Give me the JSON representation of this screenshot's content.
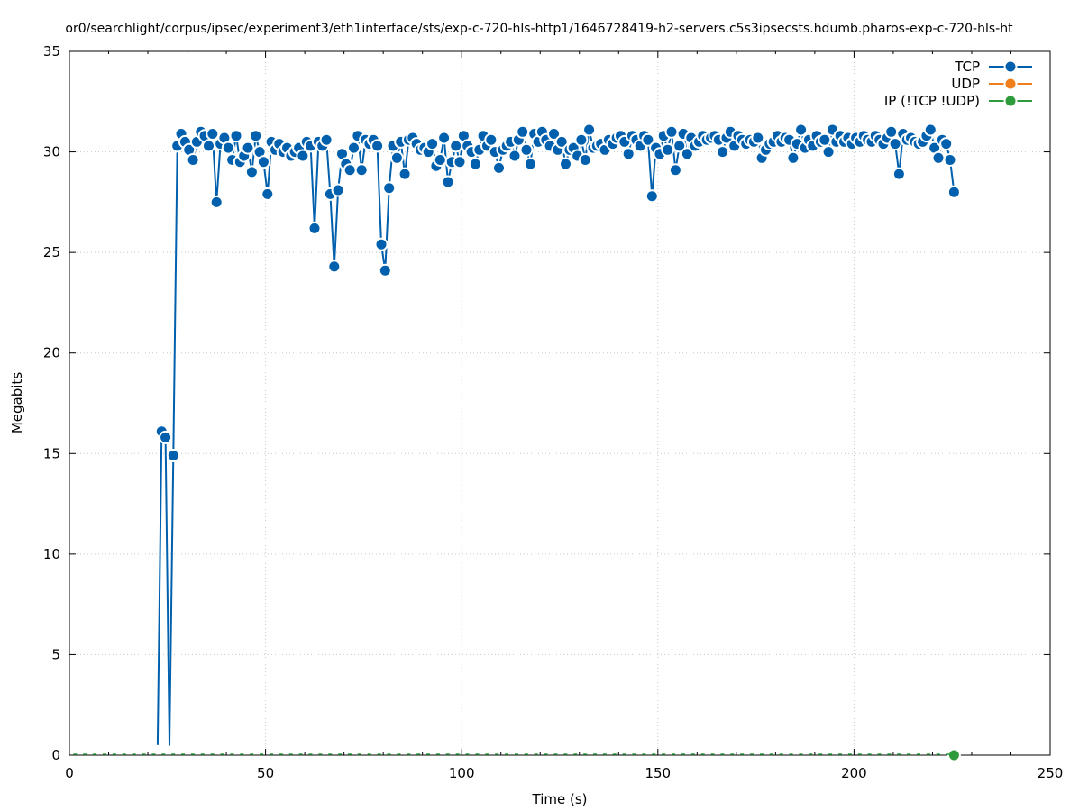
{
  "chart_data": {
    "type": "line",
    "title": "or0/searchlight/corpus/ipsec/experiment3/eth1interface/sts/exp-c-720-hls-http1/1646728419-h2-servers.c5s3ipsecsts.hdumb.pharos-exp-c-720-hls-ht",
    "xlabel": "Time (s)",
    "ylabel": "Megabits",
    "xlim": [
      0,
      250
    ],
    "ylim": [
      0,
      35
    ],
    "x_ticks": [
      0,
      50,
      100,
      150,
      200,
      250
    ],
    "y_ticks": [
      0,
      5,
      10,
      15,
      20,
      25,
      30,
      35
    ],
    "grid": true,
    "legend_position": "top-right",
    "series": [
      {
        "name": "TCP",
        "color": "#0060ad",
        "points": [
          [
            22.5,
            0.5
          ],
          [
            23.5,
            16.1
          ],
          [
            24.5,
            15.8
          ],
          [
            25.5,
            0.5
          ],
          [
            26.5,
            14.9
          ],
          [
            27.5,
            30.3
          ],
          [
            28.5,
            30.9
          ],
          [
            29.5,
            30.5
          ],
          [
            30.5,
            30.1
          ],
          [
            31.5,
            29.6
          ],
          [
            32.5,
            30.5
          ],
          [
            33.5,
            31.0
          ],
          [
            34.5,
            30.8
          ],
          [
            35.5,
            30.3
          ],
          [
            36.5,
            30.9
          ],
          [
            37.5,
            27.5
          ],
          [
            38.5,
            30.4
          ],
          [
            39.5,
            30.7
          ],
          [
            40.5,
            30.2
          ],
          [
            41.5,
            29.6
          ],
          [
            42.5,
            30.8
          ],
          [
            43.5,
            29.5
          ],
          [
            44.5,
            29.8
          ],
          [
            45.5,
            30.2
          ],
          [
            46.5,
            29.0
          ],
          [
            47.5,
            30.8
          ],
          [
            48.5,
            30.0
          ],
          [
            49.5,
            29.5
          ],
          [
            50.5,
            27.9
          ],
          [
            51.5,
            30.5
          ],
          [
            52.5,
            30.1
          ],
          [
            53.5,
            30.4
          ],
          [
            54.5,
            30.0
          ],
          [
            55.5,
            30.2
          ],
          [
            56.5,
            29.8
          ],
          [
            57.5,
            30.0
          ],
          [
            58.5,
            30.2
          ],
          [
            59.5,
            29.8
          ],
          [
            60.5,
            30.5
          ],
          [
            61.5,
            30.3
          ],
          [
            62.5,
            26.2
          ],
          [
            63.5,
            30.5
          ],
          [
            64.5,
            30.3
          ],
          [
            65.5,
            30.6
          ],
          [
            66.5,
            27.9
          ],
          [
            67.5,
            24.3
          ],
          [
            68.5,
            28.1
          ],
          [
            69.5,
            29.9
          ],
          [
            70.5,
            29.4
          ],
          [
            71.5,
            29.1
          ],
          [
            72.5,
            30.2
          ],
          [
            73.5,
            30.8
          ],
          [
            74.5,
            29.1
          ],
          [
            75.5,
            30.6
          ],
          [
            76.5,
            30.4
          ],
          [
            77.5,
            30.6
          ],
          [
            78.5,
            30.3
          ],
          [
            79.5,
            25.4
          ],
          [
            80.5,
            24.1
          ],
          [
            81.5,
            28.2
          ],
          [
            82.5,
            30.3
          ],
          [
            83.5,
            29.7
          ],
          [
            84.5,
            30.5
          ],
          [
            85.5,
            28.9
          ],
          [
            86.5,
            30.6
          ],
          [
            87.5,
            30.7
          ],
          [
            88.5,
            30.4
          ],
          [
            89.5,
            30.1
          ],
          [
            90.5,
            30.2
          ],
          [
            91.5,
            30.0
          ],
          [
            92.5,
            30.4
          ],
          [
            93.5,
            29.3
          ],
          [
            94.5,
            29.6
          ],
          [
            95.5,
            30.7
          ],
          [
            96.5,
            28.5
          ],
          [
            97.5,
            29.5
          ],
          [
            98.5,
            30.3
          ],
          [
            99.5,
            29.5
          ],
          [
            100.5,
            30.8
          ],
          [
            101.5,
            30.3
          ],
          [
            102.5,
            30.0
          ],
          [
            103.5,
            29.4
          ],
          [
            104.5,
            30.1
          ],
          [
            105.5,
            30.8
          ],
          [
            106.5,
            30.3
          ],
          [
            107.5,
            30.6
          ],
          [
            108.5,
            30.0
          ],
          [
            109.5,
            29.2
          ],
          [
            110.5,
            30.1
          ],
          [
            111.5,
            30.3
          ],
          [
            112.5,
            30.5
          ],
          [
            113.5,
            29.8
          ],
          [
            114.5,
            30.6
          ],
          [
            115.5,
            31.0
          ],
          [
            116.5,
            30.1
          ],
          [
            117.5,
            29.4
          ],
          [
            118.5,
            30.9
          ],
          [
            119.5,
            30.5
          ],
          [
            120.5,
            31.0
          ],
          [
            121.5,
            30.6
          ],
          [
            122.5,
            30.3
          ],
          [
            123.5,
            30.9
          ],
          [
            124.5,
            30.1
          ],
          [
            125.5,
            30.5
          ],
          [
            126.5,
            29.4
          ],
          [
            127.5,
            30.1
          ],
          [
            128.5,
            30.2
          ],
          [
            129.5,
            29.8
          ],
          [
            130.5,
            30.6
          ],
          [
            131.5,
            29.6
          ],
          [
            132.5,
            31.1
          ],
          [
            133.5,
            30.2
          ],
          [
            134.5,
            30.3
          ],
          [
            135.5,
            30.4
          ],
          [
            136.5,
            30.1
          ],
          [
            137.5,
            30.6
          ],
          [
            138.5,
            30.4
          ],
          [
            139.5,
            30.7
          ],
          [
            140.5,
            30.8
          ],
          [
            141.5,
            30.5
          ],
          [
            142.5,
            29.9
          ],
          [
            143.5,
            30.8
          ],
          [
            144.5,
            30.6
          ],
          [
            145.5,
            30.3
          ],
          [
            146.5,
            30.8
          ],
          [
            147.5,
            30.6
          ],
          [
            148.5,
            27.8
          ],
          [
            149.5,
            30.2
          ],
          [
            150.5,
            29.9
          ],
          [
            151.5,
            30.8
          ],
          [
            152.5,
            30.1
          ],
          [
            153.5,
            31.0
          ],
          [
            154.5,
            29.1
          ],
          [
            155.5,
            30.3
          ],
          [
            156.5,
            30.9
          ],
          [
            157.5,
            29.9
          ],
          [
            158.5,
            30.7
          ],
          [
            159.5,
            30.3
          ],
          [
            160.5,
            30.5
          ],
          [
            161.5,
            30.8
          ],
          [
            162.5,
            30.6
          ],
          [
            163.5,
            30.7
          ],
          [
            164.5,
            30.8
          ],
          [
            165.5,
            30.6
          ],
          [
            166.5,
            30.0
          ],
          [
            167.5,
            30.7
          ],
          [
            168.5,
            31.0
          ],
          [
            169.5,
            30.3
          ],
          [
            170.5,
            30.8
          ],
          [
            171.5,
            30.6
          ],
          [
            172.5,
            30.4
          ],
          [
            173.5,
            30.6
          ],
          [
            174.5,
            30.5
          ],
          [
            175.5,
            30.7
          ],
          [
            176.5,
            29.7
          ],
          [
            177.5,
            30.1
          ],
          [
            178.5,
            30.4
          ],
          [
            179.5,
            30.5
          ],
          [
            180.5,
            30.8
          ],
          [
            181.5,
            30.5
          ],
          [
            182.5,
            30.7
          ],
          [
            183.5,
            30.6
          ],
          [
            184.5,
            29.7
          ],
          [
            185.5,
            30.4
          ],
          [
            186.5,
            31.1
          ],
          [
            187.5,
            30.2
          ],
          [
            188.5,
            30.6
          ],
          [
            189.5,
            30.3
          ],
          [
            190.5,
            30.8
          ],
          [
            191.5,
            30.5
          ],
          [
            192.5,
            30.6
          ],
          [
            193.5,
            30.0
          ],
          [
            194.5,
            31.1
          ],
          [
            195.5,
            30.5
          ],
          [
            196.5,
            30.8
          ],
          [
            197.5,
            30.5
          ],
          [
            198.5,
            30.7
          ],
          [
            199.5,
            30.4
          ],
          [
            200.5,
            30.7
          ],
          [
            201.5,
            30.5
          ],
          [
            202.5,
            30.8
          ],
          [
            203.5,
            30.6
          ],
          [
            204.5,
            30.5
          ],
          [
            205.5,
            30.8
          ],
          [
            206.5,
            30.6
          ],
          [
            207.5,
            30.4
          ],
          [
            208.5,
            30.7
          ],
          [
            209.5,
            31.0
          ],
          [
            210.5,
            30.4
          ],
          [
            211.5,
            28.9
          ],
          [
            212.5,
            30.9
          ],
          [
            213.5,
            30.6
          ],
          [
            214.5,
            30.7
          ],
          [
            215.5,
            30.5
          ],
          [
            216.5,
            30.4
          ],
          [
            217.5,
            30.5
          ],
          [
            218.5,
            30.8
          ],
          [
            219.5,
            31.1
          ],
          [
            220.5,
            30.2
          ],
          [
            221.5,
            29.7
          ],
          [
            222.5,
            30.6
          ],
          [
            223.5,
            30.4
          ],
          [
            224.5,
            29.6
          ],
          [
            225.5,
            28.0
          ]
        ]
      },
      {
        "name": "UDP",
        "color": "#f07f1b",
        "points": []
      },
      {
        "name": "IP (!TCP  !UDP)",
        "color": "#2d9a3b",
        "points": [
          [
            225.5,
            0
          ]
        ]
      }
    ]
  }
}
